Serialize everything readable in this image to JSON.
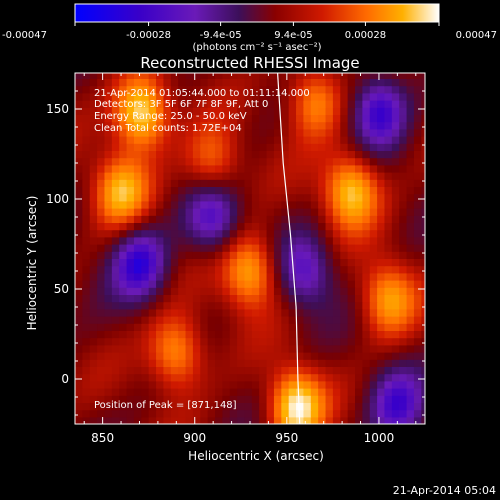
{
  "chart_data": {
    "type": "heatmap",
    "title": "Reconstructed RHESSI Image",
    "xlabel": "Heliocentric X (arcsec)",
    "ylabel": "Heliocentric Y (arcsec)",
    "xlim": [
      835,
      1025
    ],
    "ylim": [
      -25,
      170
    ],
    "x_ticks": [
      850,
      900,
      950,
      1000
    ],
    "y_ticks": [
      0,
      50,
      100,
      150
    ],
    "annotations": [
      "21-Apr-2014 01:05:44.000 to 01:11:14.000",
      "Detectors: 3F 5F 6F 7F 8F 9F, Att 0",
      "Energy Range: 25.0 - 50.0 keV",
      "Clean    Total counts: 1.72E+04",
      "Position of Peak = [871,148]"
    ],
    "limb_curve": [
      [
        945,
        170
      ],
      [
        948,
        120
      ],
      [
        952,
        80
      ],
      [
        955,
        40
      ],
      [
        956,
        0
      ],
      [
        957,
        -25
      ]
    ],
    "colorbar": {
      "range": [
        -0.00047,
        0.00047
      ],
      "tick_values": [
        -0.00047,
        -0.00028,
        -9.4e-05,
        9.4e-05,
        0.00028,
        0.00047
      ],
      "tick_labels": [
        "-0.00047",
        "-0.00028",
        "-9.4e-05",
        "9.4e-05",
        "0.00028",
        "0.00047"
      ],
      "units": "(photons cm⁻² s⁻¹ asec⁻²)"
    },
    "bright_sources": [
      {
        "x": 871,
        "y": 148,
        "value": 0.00047
      },
      {
        "x": 955,
        "y": -15,
        "value": 0.00045
      },
      {
        "x": 985,
        "y": 105,
        "value": 0.0004
      },
      {
        "x": 930,
        "y": 60,
        "value": 0.00036
      },
      {
        "x": 860,
        "y": 105,
        "value": 0.00034
      },
      {
        "x": 890,
        "y": 15,
        "value": 0.00033
      },
      {
        "x": 1005,
        "y": 45,
        "value": 0.00032
      },
      {
        "x": 965,
        "y": 155,
        "value": 0.0003
      },
      {
        "x": 910,
        "y": 120,
        "value": 0.00025
      }
    ],
    "faint_regions": [
      {
        "x": 870,
        "y": 65,
        "value": -0.00035
      },
      {
        "x": 910,
        "y": 90,
        "value": -0.0003
      },
      {
        "x": 1000,
        "y": 150,
        "value": -0.00035
      },
      {
        "x": 1010,
        "y": -15,
        "value": -0.0003
      },
      {
        "x": 960,
        "y": 60,
        "value": -0.00028
      }
    ]
  },
  "footer_timestamp": "21-Apr-2014 05:04",
  "colors": {
    "background": "#000000",
    "colormap": [
      "#0000ff",
      "#3a00c8",
      "#6a1ab8",
      "#3c0f5a",
      "#7a0000",
      "#d01a00",
      "#ff6a00",
      "#ffb000",
      "#ffffff"
    ]
  }
}
